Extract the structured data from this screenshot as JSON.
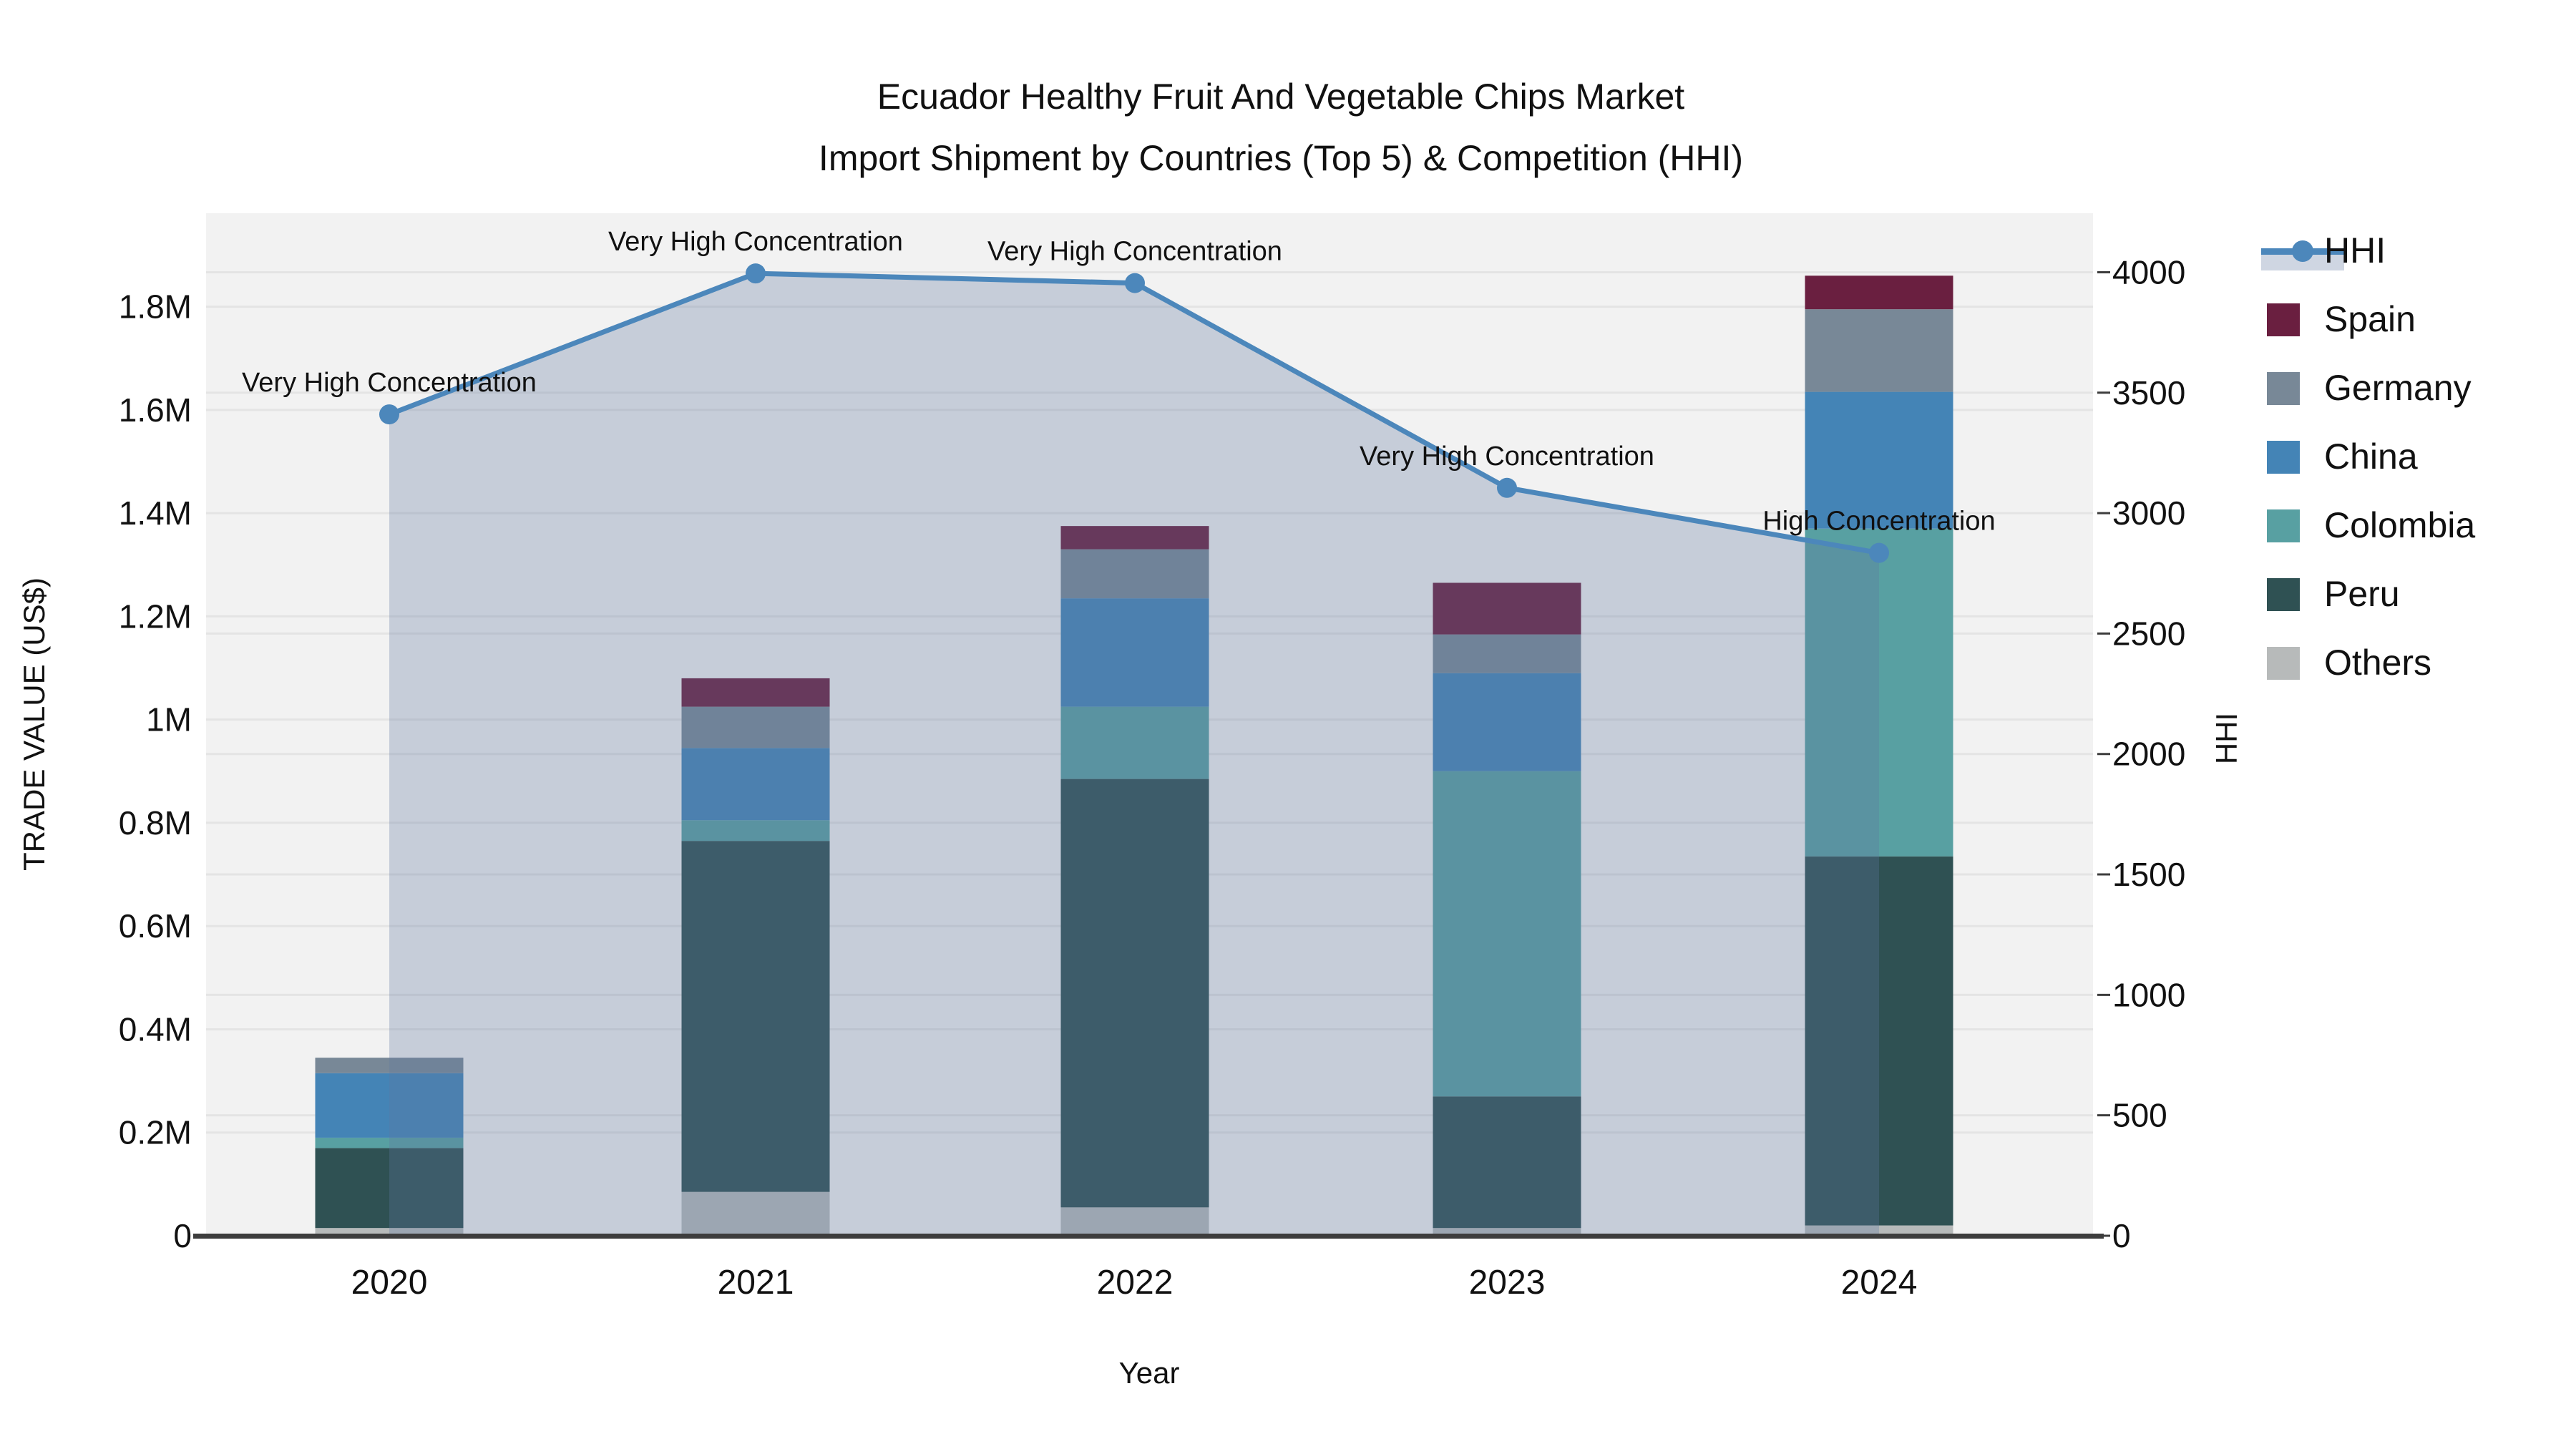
{
  "title": {
    "line1": "Ecuador Healthy Fruit And Vegetable Chips Market",
    "line2": "Import Shipment by Countries (Top 5) & Competition (HHI)"
  },
  "chart_data": {
    "type": "combo-stacked-bar-line",
    "categories": [
      "2020",
      "2021",
      "2022",
      "2023",
      "2024"
    ],
    "xlabel": "Year",
    "ylabel_left": "TRADE VALUE (US$)",
    "ylabel_right": "HHI",
    "ylim_left": [
      0,
      1981000
    ],
    "ylim_right": [
      0,
      4245
    ],
    "grid": true,
    "legend_position": "right",
    "bar_stack_order_note": "bottom to top",
    "bar_series": [
      {
        "name": "Others",
        "color": "#B7BABA",
        "values": [
          15000,
          85000,
          55000,
          15000,
          20000
        ]
      },
      {
        "name": "Peru",
        "color": "#2F5153",
        "values": [
          155000,
          680000,
          830000,
          255000,
          715000
        ]
      },
      {
        "name": "Colombia",
        "color": "#58A0A2",
        "values": [
          20000,
          40000,
          140000,
          630000,
          635000
        ]
      },
      {
        "name": "China",
        "color": "#4484B6",
        "values": [
          125000,
          140000,
          210000,
          190000,
          265000
        ]
      },
      {
        "name": "Germany",
        "color": "#788897",
        "values": [
          30000,
          80000,
          95000,
          75000,
          160000
        ]
      },
      {
        "name": "Spain",
        "color": "#6A1F40",
        "values": [
          0,
          55000,
          45000,
          100000,
          65000
        ]
      }
    ],
    "line_series": {
      "name": "HHI",
      "color": "#4C87BB",
      "fill_color": "rgba(95,120,160,0.30)",
      "values": [
        3410,
        3995,
        3955,
        3105,
        2835
      ]
    },
    "annotations": [
      {
        "category": "2020",
        "text": "Very High Concentration"
      },
      {
        "category": "2021",
        "text": "Very High Concentration"
      },
      {
        "category": "2022",
        "text": "Very High Concentration"
      },
      {
        "category": "2023",
        "text": "Very High Concentration"
      },
      {
        "category": "2024",
        "text": "High Concentration"
      }
    ],
    "ticks_left": [
      {
        "v": 0,
        "label": "0"
      },
      {
        "v": 200000,
        "label": "0.2M"
      },
      {
        "v": 400000,
        "label": "0.4M"
      },
      {
        "v": 600000,
        "label": "0.6M"
      },
      {
        "v": 800000,
        "label": "0.8M"
      },
      {
        "v": 1000000,
        "label": "1M"
      },
      {
        "v": 1200000,
        "label": "1.2M"
      },
      {
        "v": 1400000,
        "label": "1.4M"
      },
      {
        "v": 1600000,
        "label": "1.6M"
      },
      {
        "v": 1800000,
        "label": "1.8M"
      }
    ],
    "ticks_right": [
      {
        "v": 0,
        "label": "0"
      },
      {
        "v": 500,
        "label": "500"
      },
      {
        "v": 1000,
        "label": "1000"
      },
      {
        "v": 1500,
        "label": "1500"
      },
      {
        "v": 2000,
        "label": "2000"
      },
      {
        "v": 2500,
        "label": "2500"
      },
      {
        "v": 3000,
        "label": "3000"
      },
      {
        "v": 3500,
        "label": "3500"
      },
      {
        "v": 4000,
        "label": "4000"
      }
    ],
    "legend": [
      "HHI",
      "Spain",
      "Germany",
      "China",
      "Colombia",
      "Peru",
      "Others"
    ]
  }
}
